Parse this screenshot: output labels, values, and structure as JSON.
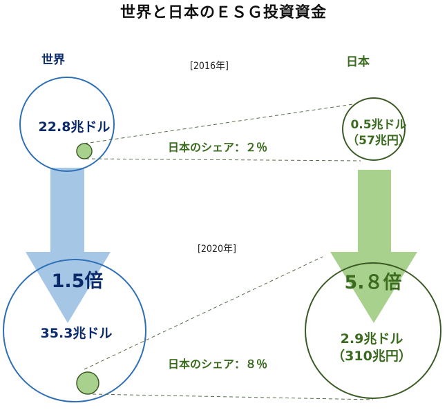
{
  "title": "世界と日本のＥＳＧ投資資金",
  "headers": {
    "world": "世界",
    "japan": "日本"
  },
  "years": {
    "first": "[2016年]",
    "second": "[2020年]"
  },
  "world": {
    "amount_2016": "22.8兆ドル",
    "amount_2020": "35.3兆ドル",
    "multiplier": "1.5倍",
    "color": "#2f6fb5"
  },
  "japan": {
    "amount_2016_usd": "0.5兆ドル",
    "amount_2016_jpy": "（57兆円）",
    "amount_2020_usd": "2.9兆ドル",
    "amount_2020_jpy": "（310兆円）",
    "multiplier": "5.８倍",
    "color": "#3a6b1f"
  },
  "share": {
    "share_2016": "日本のシェア：２％",
    "share_2020": "日本のシェア：８％"
  },
  "colors": {
    "world_text": "#0b2a6a",
    "world_circle": "#2f6fb5",
    "world_arrow": "#a6c6e6",
    "japan_text": "#3a6b1f",
    "japan_circle": "#3a5a24",
    "japan_arrow": "#a9d18e",
    "share_dot": "#a9d18e"
  }
}
